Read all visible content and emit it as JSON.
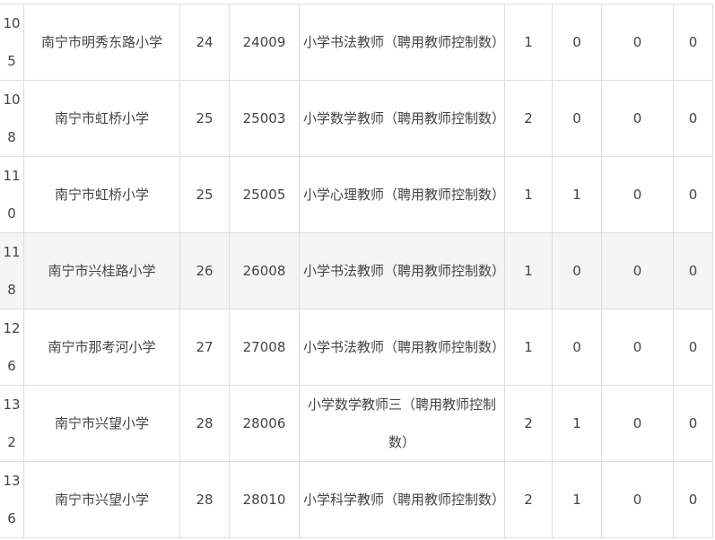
{
  "rows": [
    {
      "idx": "105",
      "school": "南宁市明秀东路小学",
      "code": "24",
      "post_code": "24009",
      "position": "小学书法教师（聘用教师控制数）",
      "n1": "1",
      "n2": "0",
      "n3": "0",
      "n4": "0",
      "highlight": false
    },
    {
      "idx": "108",
      "school": "南宁市虹桥小学",
      "code": "25",
      "post_code": "25003",
      "position": "小学数学教师（聘用教师控制数）",
      "n1": "2",
      "n2": "0",
      "n3": "0",
      "n4": "0",
      "highlight": false
    },
    {
      "idx": "110",
      "school": "南宁市虹桥小学",
      "code": "25",
      "post_code": "25005",
      "position": "小学心理教师（聘用教师控制数）",
      "n1": "1",
      "n2": "1",
      "n3": "0",
      "n4": "0",
      "highlight": false
    },
    {
      "idx": "118",
      "school": "南宁市兴桂路小学",
      "code": "26",
      "post_code": "26008",
      "position": "小学书法教师（聘用教师控制数）",
      "n1": "1",
      "n2": "0",
      "n3": "0",
      "n4": "0",
      "highlight": true
    },
    {
      "idx": "126",
      "school": "南宁市那考河小学",
      "code": "27",
      "post_code": "27008",
      "position": "小学书法教师（聘用教师控制数）",
      "n1": "1",
      "n2": "0",
      "n3": "0",
      "n4": "0",
      "highlight": false
    },
    {
      "idx": "132",
      "school": "南宁市兴望小学",
      "code": "28",
      "post_code": "28006",
      "position": "小学数学教师三（聘用教师控制数）",
      "n1": "2",
      "n2": "1",
      "n3": "0",
      "n4": "0",
      "highlight": false
    },
    {
      "idx": "136",
      "school": "南宁市兴望小学",
      "code": "28",
      "post_code": "28010",
      "position": "小学科学教师（聘用教师控制数）",
      "n1": "2",
      "n2": "1",
      "n3": "0",
      "n4": "0",
      "highlight": false
    }
  ],
  "colors": {
    "border": "#dddddd",
    "highlight_row": "#f5f5f5",
    "text": "#444444"
  }
}
